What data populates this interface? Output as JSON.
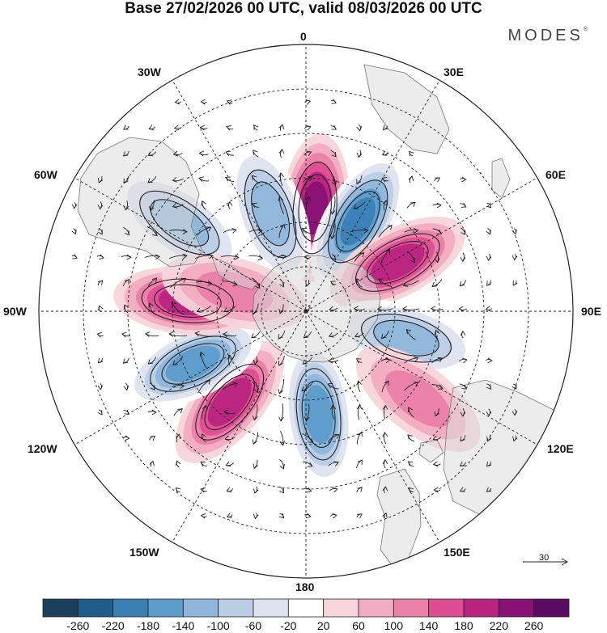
{
  "title": "Base 27/02/2026 00 UTC, valid 08/03/2026 00 UTC",
  "brand": "MODES",
  "brand_mark": "®",
  "longitude_labels": {
    "0": "0",
    "30E": "30E",
    "60E": "60E",
    "90E": "90E",
    "120E": "120E",
    "150E": "150E",
    "180": "180",
    "150W": "150W",
    "120W": "120W",
    "90W": "90W",
    "60W": "60W",
    "30W": "30W"
  },
  "reference_vector": "30",
  "colorbar": {
    "ticks": [
      "-260",
      "-220",
      "-180",
      "-140",
      "-100",
      "-60",
      "-20",
      "20",
      "60",
      "100",
      "140",
      "180",
      "220",
      "260"
    ],
    "colors": [
      "#1d3f5e",
      "#1f5c8a",
      "#3a7fb5",
      "#5d9ccb",
      "#8fb6da",
      "#b9cde6",
      "#dde3ef",
      "#ffffff",
      "#f7d5da",
      "#f2acc0",
      "#ea7fa8",
      "#de4d92",
      "#b8247f",
      "#8a1174",
      "#5a0a60"
    ]
  },
  "anomaly_centers": [
    {
      "name": "pos-0",
      "value": 240,
      "lon": 5,
      "lat": -55
    },
    {
      "name": "neg-30e",
      "value": -210,
      "lon": 30,
      "lat": -55
    },
    {
      "name": "pos-60e",
      "value": 200,
      "lon": 62,
      "lat": -55
    },
    {
      "name": "neg-100e",
      "value": -130,
      "lon": 105,
      "lat": -55
    },
    {
      "name": "pos-130e",
      "value": 110,
      "lon": 128,
      "lat": -42
    },
    {
      "name": "neg-170e",
      "value": -170,
      "lon": 173,
      "lat": -55
    },
    {
      "name": "pos-140w",
      "value": 170,
      "lon": -140,
      "lat": -50
    },
    {
      "name": "neg-115w",
      "value": -200,
      "lon": -115,
      "lat": -48
    },
    {
      "name": "pos-85w",
      "value": 190,
      "lon": -85,
      "lat": -50
    },
    {
      "name": "neg-60w",
      "value": -150,
      "lon": -55,
      "lat": -38
    },
    {
      "name": "neg-20w",
      "value": -140,
      "lon": -20,
      "lat": -55
    },
    {
      "name": "pos-75w",
      "value": 90,
      "lon": -75,
      "lat": -65
    }
  ]
}
